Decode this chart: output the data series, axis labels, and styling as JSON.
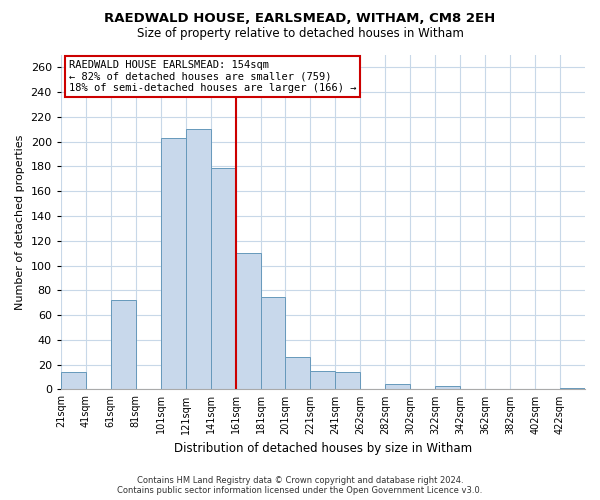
{
  "title": "RAEDWALD HOUSE, EARLSMEAD, WITHAM, CM8 2EH",
  "subtitle": "Size of property relative to detached houses in Witham",
  "xlabel": "Distribution of detached houses by size in Witham",
  "ylabel": "Number of detached properties",
  "bar_color": "#c8d8eb",
  "bar_edge_color": "#6699bb",
  "bin_labels": [
    "21sqm",
    "41sqm",
    "61sqm",
    "81sqm",
    "101sqm",
    "121sqm",
    "141sqm",
    "161sqm",
    "181sqm",
    "201sqm",
    "221sqm",
    "241sqm",
    "262sqm",
    "282sqm",
    "302sqm",
    "322sqm",
    "342sqm",
    "362sqm",
    "382sqm",
    "402sqm",
    "422sqm"
  ],
  "bar_heights": [
    14,
    0,
    72,
    0,
    203,
    210,
    179,
    110,
    75,
    26,
    15,
    14,
    0,
    4,
    0,
    3,
    0,
    0,
    0,
    0,
    1
  ],
  "ylim": [
    0,
    270
  ],
  "yticks": [
    0,
    20,
    40,
    60,
    80,
    100,
    120,
    140,
    160,
    180,
    200,
    220,
    240,
    260
  ],
  "vline_color": "#cc0000",
  "annotation_title": "RAEDWALD HOUSE EARLSMEAD: 154sqm",
  "annotation_line1": "← 82% of detached houses are smaller (759)",
  "annotation_line2": "18% of semi-detached houses are larger (166) →",
  "annotation_box_color": "#ffffff",
  "annotation_box_edge_color": "#cc0000",
  "footer_line1": "Contains HM Land Registry data © Crown copyright and database right 2024.",
  "footer_line2": "Contains public sector information licensed under the Open Government Licence v3.0.",
  "background_color": "#ffffff",
  "grid_color": "#c8d8e8"
}
